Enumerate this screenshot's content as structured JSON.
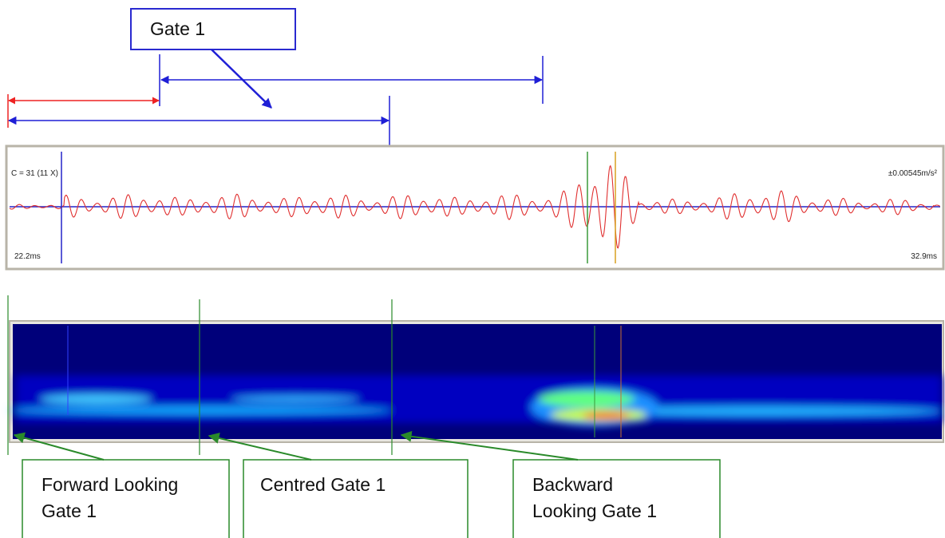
{
  "gate_label": "Gate 1",
  "waveform": {
    "channel": "C = 31 (11 X)",
    "scale": "±0.00545m/s²",
    "start_time": "22.2ms",
    "end_time": "32.9ms"
  },
  "annotations": [
    {
      "lines": [
        "Forward Looking",
        "Gate 1"
      ]
    },
    {
      "lines": [
        "Centred Gate 1"
      ]
    },
    {
      "lines": [
        "Backward",
        "Looking Gate 1"
      ]
    }
  ]
}
